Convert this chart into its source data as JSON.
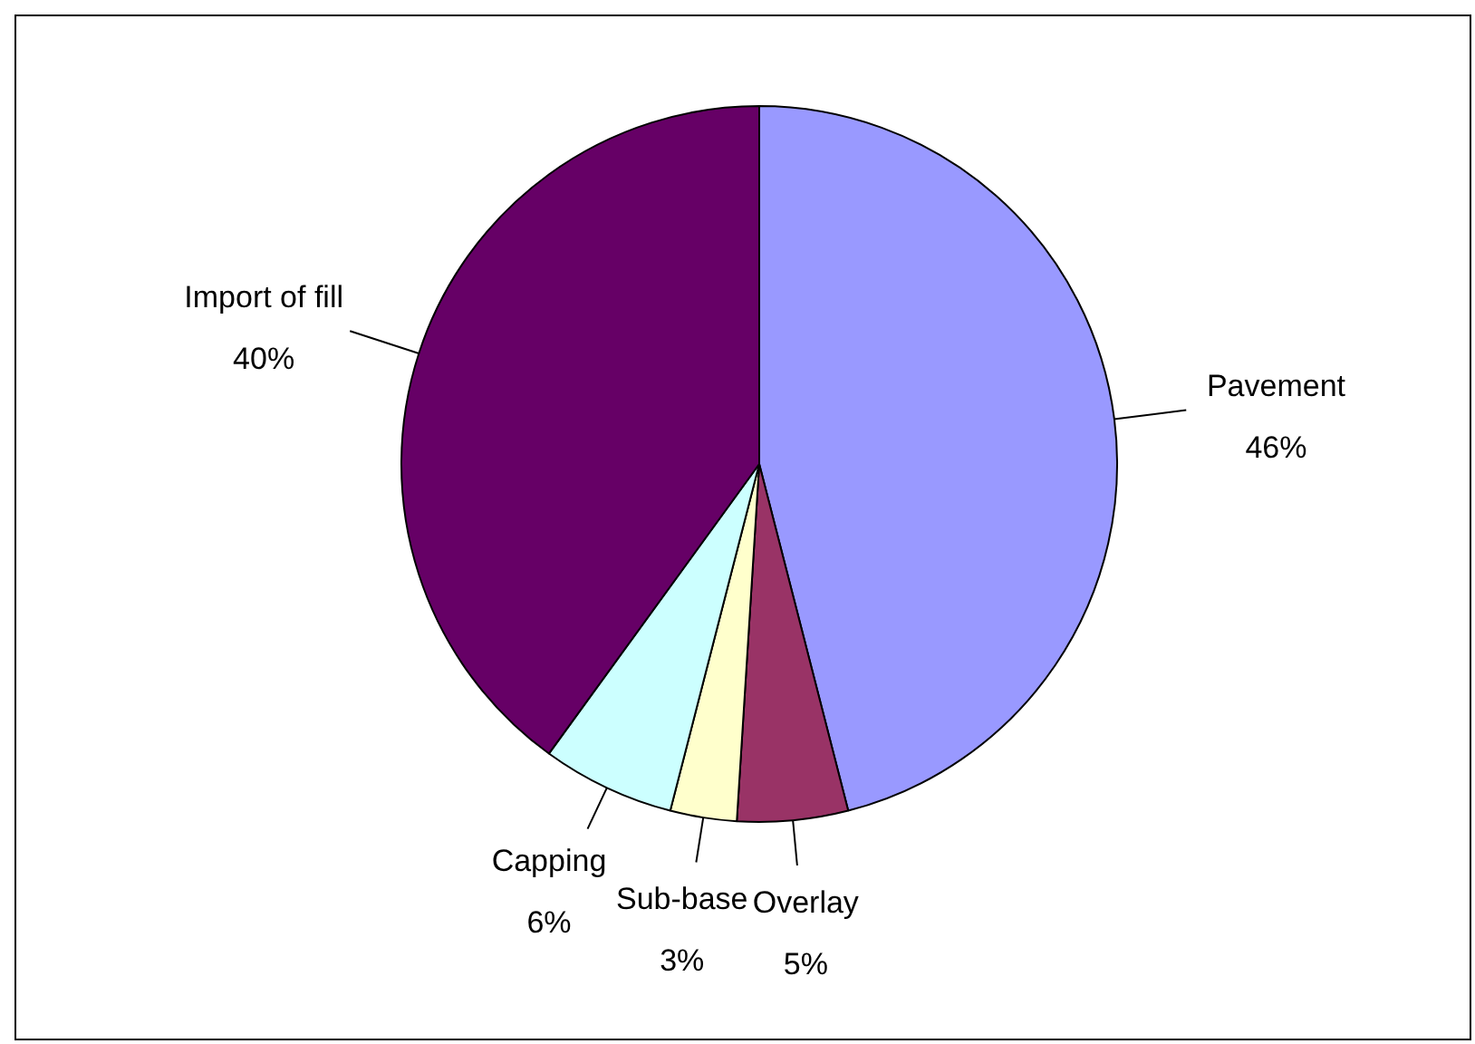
{
  "chart_data": {
    "type": "pie",
    "categories": [
      "Pavement",
      "Overlay",
      "Sub-base",
      "Capping",
      "Import of fill"
    ],
    "values": [
      46,
      5,
      3,
      6,
      40
    ],
    "colors": [
      "#9999ff",
      "#993366",
      "#ffffcc",
      "#ccffff",
      "#660066"
    ],
    "value_labels": [
      "46%",
      "5%",
      "3%",
      "6%",
      "40%"
    ],
    "legend": false
  }
}
